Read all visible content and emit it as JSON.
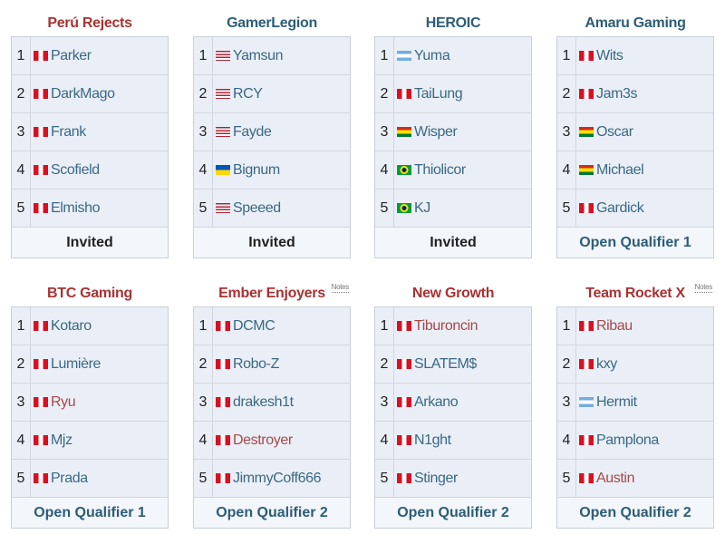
{
  "colors": {
    "red_link": "#a83232",
    "blue_link": "#2c5d78",
    "player_blue": "#3a6886",
    "player_red": "#a84848"
  },
  "notes_label": "Notes",
  "teams": [
    {
      "name": "Perú Rejects",
      "name_color": "red",
      "notes": false,
      "qualification": "Invited",
      "qual_color": "dark",
      "players": [
        {
          "rank": "1",
          "flag": "pe",
          "name": "Parker",
          "link": "blue"
        },
        {
          "rank": "2",
          "flag": "pe",
          "name": "DarkMago",
          "link": "blue"
        },
        {
          "rank": "3",
          "flag": "pe",
          "name": "Frank",
          "link": "blue"
        },
        {
          "rank": "4",
          "flag": "pe",
          "name": "Scofield",
          "link": "blue"
        },
        {
          "rank": "5",
          "flag": "pe",
          "name": "Elmisho",
          "link": "blue"
        }
      ]
    },
    {
      "name": "GamerLegion",
      "name_color": "blue",
      "notes": false,
      "qualification": "Invited",
      "qual_color": "dark",
      "players": [
        {
          "rank": "1",
          "flag": "us",
          "name": "Yamsun",
          "link": "blue"
        },
        {
          "rank": "2",
          "flag": "us",
          "name": "RCY",
          "link": "blue"
        },
        {
          "rank": "3",
          "flag": "us",
          "name": "Fayde",
          "link": "blue"
        },
        {
          "rank": "4",
          "flag": "ua",
          "name": "Bignum",
          "link": "blue"
        },
        {
          "rank": "5",
          "flag": "us",
          "name": "Speeed",
          "link": "blue"
        }
      ]
    },
    {
      "name": "HEROIC",
      "name_color": "blue",
      "notes": false,
      "qualification": "Invited",
      "qual_color": "dark",
      "players": [
        {
          "rank": "1",
          "flag": "ar",
          "name": "Yuma",
          "link": "blue"
        },
        {
          "rank": "2",
          "flag": "pe",
          "name": "TaiLung",
          "link": "blue"
        },
        {
          "rank": "3",
          "flag": "bo",
          "name": "Wisper",
          "link": "blue"
        },
        {
          "rank": "4",
          "flag": "br",
          "name": "Thiolicor",
          "link": "blue"
        },
        {
          "rank": "5",
          "flag": "br",
          "name": "KJ",
          "link": "blue"
        }
      ]
    },
    {
      "name": "Amaru Gaming",
      "name_color": "blue",
      "notes": false,
      "qualification": "Open Qualifier 1",
      "qual_color": "blue",
      "players": [
        {
          "rank": "1",
          "flag": "pe",
          "name": "Wits",
          "link": "blue"
        },
        {
          "rank": "2",
          "flag": "pe",
          "name": "Jam3s",
          "link": "blue"
        },
        {
          "rank": "3",
          "flag": "bo",
          "name": "Oscar",
          "link": "blue"
        },
        {
          "rank": "4",
          "flag": "bo",
          "name": "Michael",
          "link": "blue"
        },
        {
          "rank": "5",
          "flag": "pe",
          "name": "Gardick",
          "link": "blue"
        }
      ]
    },
    {
      "name": "BTC Gaming",
      "name_color": "red",
      "notes": false,
      "qualification": "Open Qualifier 1",
      "qual_color": "blue",
      "players": [
        {
          "rank": "1",
          "flag": "pe",
          "name": "Kotaro",
          "link": "blue"
        },
        {
          "rank": "2",
          "flag": "pe",
          "name": "Lumière",
          "link": "blue"
        },
        {
          "rank": "3",
          "flag": "pe",
          "name": "Ryu",
          "link": "red"
        },
        {
          "rank": "4",
          "flag": "pe",
          "name": "Mjz",
          "link": "blue"
        },
        {
          "rank": "5",
          "flag": "pe",
          "name": "Prada",
          "link": "blue"
        }
      ]
    },
    {
      "name": "Ember Enjoyers",
      "name_color": "red",
      "notes": true,
      "qualification": "Open Qualifier 2",
      "qual_color": "blue",
      "players": [
        {
          "rank": "1",
          "flag": "pe",
          "name": "DCMC",
          "link": "blue"
        },
        {
          "rank": "2",
          "flag": "pe",
          "name": "Robo-Z",
          "link": "blue"
        },
        {
          "rank": "3",
          "flag": "pe",
          "name": "drakesh1t",
          "link": "blue"
        },
        {
          "rank": "4",
          "flag": "pe",
          "name": "Destroyer",
          "link": "red"
        },
        {
          "rank": "5",
          "flag": "pe",
          "name": "JimmyCoff666",
          "link": "blue"
        }
      ]
    },
    {
      "name": "New Growth",
      "name_color": "red",
      "notes": false,
      "qualification": "Open Qualifier 2",
      "qual_color": "blue",
      "players": [
        {
          "rank": "1",
          "flag": "pe",
          "name": "Tiburoncin",
          "link": "red"
        },
        {
          "rank": "2",
          "flag": "pe",
          "name": "SLATEM$",
          "link": "blue"
        },
        {
          "rank": "3",
          "flag": "pe",
          "name": "Arkano",
          "link": "blue"
        },
        {
          "rank": "4",
          "flag": "pe",
          "name": "N1ght",
          "link": "blue"
        },
        {
          "rank": "5",
          "flag": "pe",
          "name": "Stinger",
          "link": "blue"
        }
      ]
    },
    {
      "name": "Team Rocket X",
      "name_color": "red",
      "notes": true,
      "qualification": "Open Qualifier 2",
      "qual_color": "blue",
      "players": [
        {
          "rank": "1",
          "flag": "pe",
          "name": "Ribau",
          "link": "red"
        },
        {
          "rank": "2",
          "flag": "pe",
          "name": "kxy",
          "link": "blue"
        },
        {
          "rank": "3",
          "flag": "ar",
          "name": "Hermit",
          "link": "blue"
        },
        {
          "rank": "4",
          "flag": "pe",
          "name": "Pamplona",
          "link": "blue"
        },
        {
          "rank": "5",
          "flag": "pe",
          "name": "Austin",
          "link": "red"
        }
      ]
    }
  ]
}
